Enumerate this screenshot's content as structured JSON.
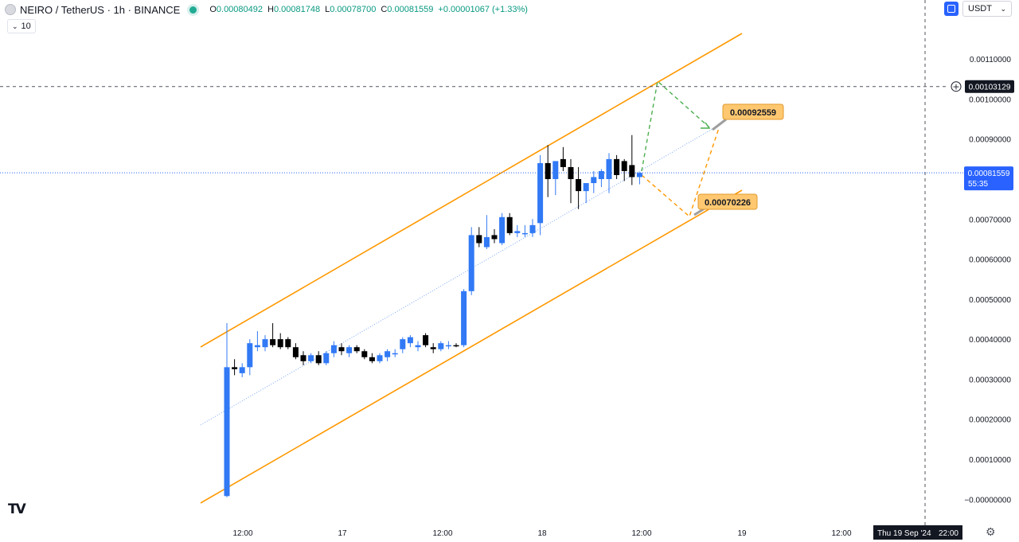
{
  "header": {
    "symbol_title": "NEIRO / TetherUS · 1h · BINANCE",
    "ohlc": [
      {
        "k": "O",
        "v": "0.00080492"
      },
      {
        "k": "H",
        "v": "0.00081748"
      },
      {
        "k": "L",
        "v": "0.00078700"
      },
      {
        "k": "C",
        "v": "0.00081559"
      },
      {
        "k": "",
        "v": "+0.00001067 (+1.33%)"
      }
    ],
    "volume_toggle": "10",
    "quote_currency": "USDT"
  },
  "price_scale": {
    "ticks": [
      "0.00110000",
      "0.00100000",
      "0.00090000",
      "0.00070000",
      "0.00060000",
      "0.00050000",
      "0.00040000",
      "0.00030000",
      "0.00020000",
      "0.00010000",
      "−0.00000000"
    ],
    "crosshair_label": "0.00103129",
    "last_price_label": "0.00081559",
    "countdown": "55:35"
  },
  "time_scale": {
    "labels": [
      "12:00",
      "17",
      "12:00",
      "18",
      "12:00",
      "19",
      "12:00"
    ],
    "crosshair_label": "Thu 19 Sep '24",
    "crosshair_time": "22:00"
  },
  "annotations": {
    "target_label": "0.00092559",
    "support_label": "0.00070226"
  },
  "colors": {
    "up": "#3179f5",
    "down": "#000000",
    "channel": "#ff9800",
    "midline": "#7ba7f5",
    "bull_path": "#4caf50",
    "bear_path": "#ff9800",
    "last_price_badge": "#2962ff",
    "label_fill": "#ffc870"
  },
  "chart_data": {
    "type": "candlestick",
    "symbol": "NEIRO / TetherUS",
    "interval": "1h",
    "exchange": "BINANCE",
    "ylim": [
      -2e-05,
      0.0012
    ],
    "last_price": 0.00081559,
    "candles": [
      [
        8e-06,
        0.00044,
        5e-06,
        0.00033
      ],
      [
        0.00033,
        0.00035,
        0.00031,
        0.000325
      ],
      [
        0.000315,
        0.00034,
        0.000305,
        0.00033
      ],
      [
        0.00033,
        0.0004,
        0.00031,
        0.00039
      ],
      [
        0.00038,
        0.00042,
        0.00037,
        0.000385
      ],
      [
        0.00038,
        0.00041,
        0.00037,
        0.0004
      ],
      [
        0.0004,
        0.00044,
        0.00038,
        0.000385
      ],
      [
        0.0004,
        0.000415,
        0.000375,
        0.00038
      ],
      [
        0.0004,
        0.000405,
        0.000375,
        0.00038
      ],
      [
        0.00038,
        0.00039,
        0.00035,
        0.000355
      ],
      [
        0.00036,
        0.00037,
        0.000335,
        0.000345
      ],
      [
        0.000345,
        0.000365,
        0.00034,
        0.00036
      ],
      [
        0.00036,
        0.00037,
        0.000335,
        0.00034
      ],
      [
        0.00034,
        0.00037,
        0.000335,
        0.000365
      ],
      [
        0.000365,
        0.000395,
        0.000355,
        0.000385
      ],
      [
        0.00038,
        0.00039,
        0.00036,
        0.00037
      ],
      [
        0.000365,
        0.000385,
        0.000355,
        0.00038
      ],
      [
        0.00038,
        0.000385,
        0.000365,
        0.00037
      ],
      [
        0.00037,
        0.000375,
        0.00035,
        0.000355
      ],
      [
        0.000355,
        0.000365,
        0.00034,
        0.000345
      ],
      [
        0.000345,
        0.000365,
        0.00034,
        0.00036
      ],
      [
        0.000355,
        0.000375,
        0.000345,
        0.00037
      ],
      [
        0.000365,
        0.000375,
        0.000355,
        0.000365
      ],
      [
        0.000375,
        0.000405,
        0.000365,
        0.0004
      ],
      [
        0.00039,
        0.00041,
        0.00038,
        0.000405
      ],
      [
        0.00038,
        0.000395,
        0.00037,
        0.000385
      ],
      [
        0.00041,
        0.000415,
        0.00038,
        0.000385
      ],
      [
        0.00038,
        0.00039,
        0.000365,
        0.000375
      ],
      [
        0.000375,
        0.000395,
        0.00037,
        0.00039
      ],
      [
        0.000385,
        0.000395,
        0.000375,
        0.000385
      ],
      [
        0.000385,
        0.00039,
        0.00038,
        0.000383
      ],
      [
        0.000385,
        0.000525,
        0.00038,
        0.00052
      ],
      [
        0.00052,
        0.00068,
        0.00051,
        0.00066
      ],
      [
        0.00066,
        0.00068,
        0.00063,
        0.00064
      ],
      [
        0.00063,
        0.00071,
        0.000625,
        0.000655
      ],
      [
        0.00066,
        0.000675,
        0.00064,
        0.00065
      ],
      [
        0.00064,
        0.000715,
        0.000635,
        0.000705
      ],
      [
        0.000705,
        0.000715,
        0.00066,
        0.000665
      ],
      [
        0.000665,
        0.000685,
        0.000655,
        0.00067
      ],
      [
        0.000665,
        0.000685,
        0.000655,
        0.000665
      ],
      [
        0.000665,
        0.0007,
        0.000655,
        0.000685
      ],
      [
        0.00069,
        0.00086,
        0.00066,
        0.00084
      ],
      [
        0.00084,
        0.000885,
        0.000755,
        0.0008
      ],
      [
        0.0008,
        0.00084,
        0.00076,
        0.000845
      ],
      [
        0.00085,
        0.00088,
        0.00082,
        0.00083
      ],
      [
        0.00083,
        0.00085,
        0.00074,
        0.0008
      ],
      [
        0.0008,
        0.00083,
        0.000725,
        0.00077
      ],
      [
        0.00077,
        0.00078,
        0.00074,
        0.00079
      ],
      [
        0.00079,
        0.00082,
        0.000765,
        0.000805
      ],
      [
        0.0008,
        0.000825,
        0.00078,
        0.00082
      ],
      [
        0.0008,
        0.000865,
        0.000765,
        0.00085
      ],
      [
        0.00085,
        0.00086,
        0.0008,
        0.00081
      ],
      [
        0.000845,
        0.00085,
        0.000795,
        0.00082
      ],
      [
        0.000835,
        0.00091,
        0.000785,
        0.000805
      ],
      [
        0.000805,
        0.00081748,
        0.000787,
        0.00081559
      ]
    ],
    "drawings": {
      "ascending_channel": true,
      "bullish_target": 0.00092559,
      "bearish_target": 0.00070226,
      "crosshair_price": 0.00103129
    }
  }
}
